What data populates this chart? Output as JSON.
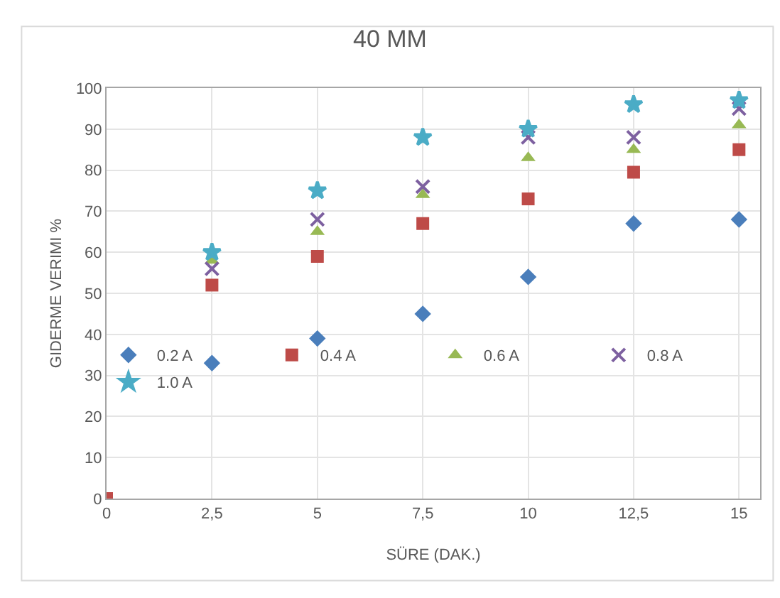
{
  "chart_data": {
    "type": "scatter",
    "title": "40 MM",
    "xlabel": "SÜRE (DAK.)",
    "ylabel": "GIDERME VERIMI %",
    "x": [
      0,
      2.5,
      5,
      7.5,
      10,
      12.5,
      15
    ],
    "series": [
      {
        "name": "0.2 A",
        "color": "#4a7ebb",
        "marker": "diamond",
        "values": [
          null,
          33,
          39,
          45,
          54,
          67,
          68
        ]
      },
      {
        "name": "0.4 A",
        "color": "#be4b48",
        "marker": "square",
        "values": [
          0,
          52,
          59,
          67,
          73,
          79.5,
          85
        ]
      },
      {
        "name": "0.6 A",
        "color": "#98b954",
        "marker": "triangle",
        "values": [
          null,
          58,
          65,
          74,
          83,
          85,
          91
        ]
      },
      {
        "name": "0.8 A",
        "color": "#7d60a0",
        "marker": "cross",
        "values": [
          null,
          56,
          68,
          76,
          88,
          88,
          95
        ]
      },
      {
        "name": "1.0 A",
        "color": "#4bacc6",
        "marker": "star",
        "values": [
          null,
          60,
          75,
          88,
          90,
          96,
          97
        ]
      }
    ],
    "xlim": [
      0,
      15.5
    ],
    "xticks": [
      0,
      {
        "value": 2.5,
        "label": "2,5"
      },
      5,
      {
        "value": 7.5,
        "label": "7,5"
      },
      10,
      {
        "value": 12.5,
        "label": "12,5"
      },
      15
    ],
    "ylim": [
      0,
      100
    ],
    "yticks": [
      0,
      10,
      20,
      30,
      40,
      50,
      60,
      70,
      80,
      90,
      100
    ],
    "grid": true,
    "legend": "bottom right"
  }
}
